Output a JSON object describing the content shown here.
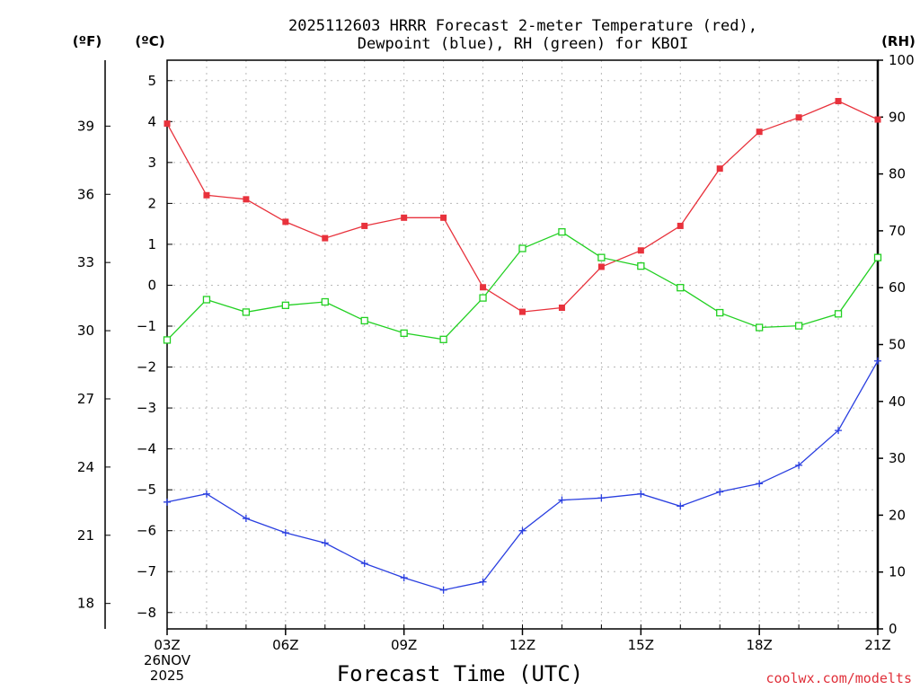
{
  "chart_data": {
    "type": "line",
    "title_line1": "2025112603 HRRR Forecast 2-meter Temperature (red),",
    "title_line2": "Dewpoint (blue), RH (green) for KBOI",
    "xlabel": "Forecast Time (UTC)",
    "credit": "coolwx.com/modelts",
    "axis_units": {
      "fahrenheit": "(ºF)",
      "celsius": "(ºC)",
      "rh": "(RH)"
    },
    "x_hours": [
      3,
      4,
      5,
      6,
      7,
      8,
      9,
      10,
      11,
      12,
      13,
      14,
      15,
      16,
      17,
      18,
      19,
      20,
      21
    ],
    "x_ticks": [
      {
        "hour": 3,
        "label": "03Z"
      },
      {
        "hour": 6,
        "label": "06Z"
      },
      {
        "hour": 9,
        "label": "09Z"
      },
      {
        "hour": 12,
        "label": "12Z"
      },
      {
        "hour": 15,
        "label": "15Z"
      },
      {
        "hour": 18,
        "label": "18Z"
      },
      {
        "hour": 21,
        "label": "21Z"
      }
    ],
    "date_label_line1": "26NOV",
    "date_label_line2": "2025",
    "x_range": [
      3,
      21
    ],
    "celsius_range": [
      -8.4,
      5.5
    ],
    "celsius_ticks": [
      5,
      4,
      3,
      2,
      1,
      0,
      -1,
      -2,
      -3,
      -4,
      -5,
      -6,
      -7,
      -8
    ],
    "fahrenheit_ticks": [
      39,
      36,
      33,
      30,
      27,
      24,
      21,
      18
    ],
    "rh_range": [
      0,
      100
    ],
    "rh_ticks": [
      100,
      90,
      80,
      70,
      60,
      50,
      40,
      30,
      20,
      10,
      0
    ],
    "grid": true,
    "series": [
      {
        "name": "2-meter Temperature (°C)",
        "color": "#e8323c",
        "marker": "filled-square",
        "axis": "celsius",
        "values": [
          3.95,
          2.2,
          2.1,
          1.55,
          1.15,
          1.45,
          1.65,
          1.65,
          -0.05,
          -0.65,
          -0.55,
          0.45,
          0.85,
          1.45,
          2.85,
          3.75,
          4.1,
          4.5,
          4.05
        ]
      },
      {
        "name": "Dewpoint (°C)",
        "color": "#2a3fe0",
        "marker": "plus",
        "axis": "celsius",
        "values": [
          -5.3,
          -5.1,
          -5.7,
          -6.05,
          -6.3,
          -6.8,
          -7.15,
          -7.45,
          -7.25,
          -6.0,
          -5.25,
          -5.2,
          -5.1,
          -5.4,
          -5.05,
          -4.85,
          -4.4,
          -3.55,
          -1.85
        ]
      },
      {
        "name": "Relative Humidity (%)",
        "color": "#22d022",
        "marker": "open-square",
        "axis": "rh",
        "values": [
          50.8,
          57.9,
          55.7,
          56.9,
          57.5,
          54.2,
          52.0,
          50.9,
          58.2,
          66.9,
          69.8,
          65.3,
          63.8,
          60.0,
          55.6,
          53.0,
          53.3,
          55.4,
          65.3
        ]
      }
    ]
  }
}
